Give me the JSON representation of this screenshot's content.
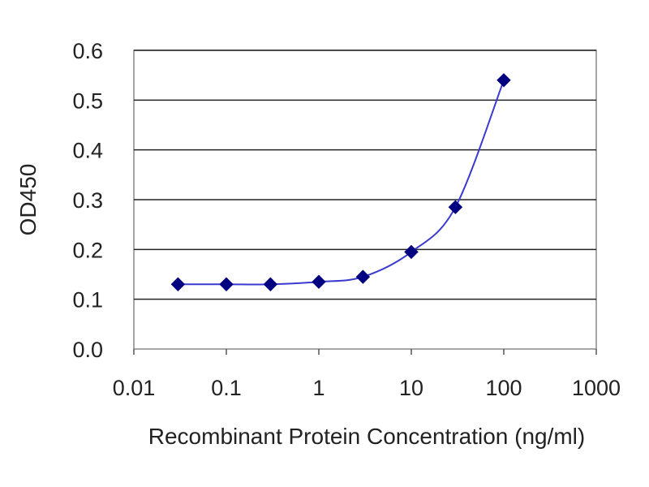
{
  "chart_data": {
    "type": "line",
    "title": "",
    "xlabel": "Recombinant Protein Concentration (ng/ml)",
    "ylabel": "OD450",
    "xscale": "log",
    "xlim": [
      0.01,
      1000
    ],
    "ylim": [
      0.0,
      0.6
    ],
    "xticks": [
      "0.01",
      "0.1",
      "1",
      "10",
      "100",
      "1000"
    ],
    "yticks": [
      "0.0",
      "0.1",
      "0.2",
      "0.3",
      "0.4",
      "0.5",
      "0.6"
    ],
    "grid": "horizontal",
    "legend": "none",
    "series": [
      {
        "marker": "diamond",
        "color": "#000080",
        "line_color": "#3a3ad0",
        "x": [
          0.03,
          0.1,
          0.3,
          1,
          3,
          10,
          30,
          100
        ],
        "y": [
          0.13,
          0.13,
          0.13,
          0.135,
          0.145,
          0.195,
          0.285,
          0.54
        ]
      }
    ]
  }
}
